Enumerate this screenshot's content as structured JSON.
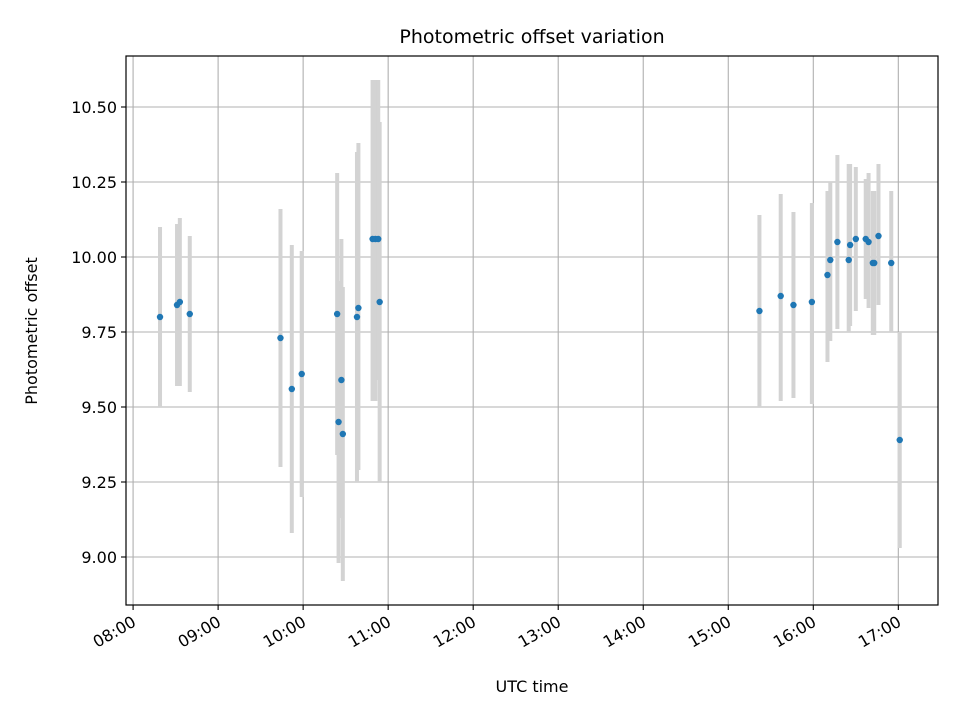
{
  "chart_data": {
    "type": "scatter",
    "title": "Photometric offset variation",
    "xlabel": "UTC time",
    "ylabel": "Photometric offset",
    "x_ticks": [
      "08:00",
      "09:00",
      "10:00",
      "11:00",
      "12:00",
      "13:00",
      "14:00",
      "15:00",
      "16:00",
      "17:00"
    ],
    "y_ticks": [
      "9.00",
      "9.25",
      "9.50",
      "9.75",
      "10.00",
      "10.25",
      "10.50"
    ],
    "xlim": [
      "07:55",
      "17:28"
    ],
    "ylim": [
      8.84,
      10.67
    ],
    "grid": true,
    "legend": "none",
    "colors": {
      "point": "#1f77b4",
      "errorbar": "#d3d3d3",
      "grid": "#b0b0b0"
    },
    "points": [
      {
        "t": "08:19",
        "y": 9.8,
        "lo": 9.5,
        "hi": 10.1
      },
      {
        "t": "08:31",
        "y": 9.84,
        "lo": 9.57,
        "hi": 10.11
      },
      {
        "t": "08:33",
        "y": 9.85,
        "lo": 9.57,
        "hi": 10.13
      },
      {
        "t": "08:40",
        "y": 9.81,
        "lo": 9.55,
        "hi": 10.07
      },
      {
        "t": "09:44",
        "y": 9.73,
        "lo": 9.3,
        "hi": 10.16
      },
      {
        "t": "09:52",
        "y": 9.56,
        "lo": 9.08,
        "hi": 10.04
      },
      {
        "t": "09:59",
        "y": 9.61,
        "lo": 9.2,
        "hi": 10.02
      },
      {
        "t": "10:24",
        "y": 9.81,
        "lo": 9.34,
        "hi": 10.28
      },
      {
        "t": "10:25",
        "y": 9.45,
        "lo": 8.98,
        "hi": 9.92
      },
      {
        "t": "10:27",
        "y": 9.59,
        "lo": 9.13,
        "hi": 10.06
      },
      {
        "t": "10:28",
        "y": 9.41,
        "lo": 8.92,
        "hi": 9.9
      },
      {
        "t": "10:38",
        "y": 9.8,
        "lo": 9.25,
        "hi": 10.35
      },
      {
        "t": "10:39",
        "y": 9.83,
        "lo": 9.29,
        "hi": 10.38
      },
      {
        "t": "10:49",
        "y": 10.06,
        "lo": 9.52,
        "hi": 10.59
      },
      {
        "t": "10:51",
        "y": 10.06,
        "lo": 9.52,
        "hi": 10.59
      },
      {
        "t": "10:53",
        "y": 10.06,
        "lo": 9.59,
        "hi": 10.59
      },
      {
        "t": "10:54",
        "y": 9.85,
        "lo": 9.25,
        "hi": 10.45
      },
      {
        "t": "15:22",
        "y": 9.82,
        "lo": 9.5,
        "hi": 10.14
      },
      {
        "t": "15:37",
        "y": 9.87,
        "lo": 9.52,
        "hi": 10.21
      },
      {
        "t": "15:46",
        "y": 9.84,
        "lo": 9.53,
        "hi": 10.15
      },
      {
        "t": "15:59",
        "y": 9.85,
        "lo": 9.51,
        "hi": 10.18
      },
      {
        "t": "16:10",
        "y": 9.94,
        "lo": 9.65,
        "hi": 10.22
      },
      {
        "t": "16:12",
        "y": 9.99,
        "lo": 9.72,
        "hi": 10.25
      },
      {
        "t": "16:17",
        "y": 10.05,
        "lo": 9.76,
        "hi": 10.34
      },
      {
        "t": "16:25",
        "y": 9.99,
        "lo": 9.75,
        "hi": 10.31
      },
      {
        "t": "16:26",
        "y": 10.04,
        "lo": 9.77,
        "hi": 10.31
      },
      {
        "t": "16:30",
        "y": 10.06,
        "lo": 9.82,
        "hi": 10.3
      },
      {
        "t": "16:37",
        "y": 10.06,
        "lo": 9.86,
        "hi": 10.26
      },
      {
        "t": "16:39",
        "y": 10.05,
        "lo": 9.83,
        "hi": 10.28
      },
      {
        "t": "16:42",
        "y": 9.98,
        "lo": 9.74,
        "hi": 10.22
      },
      {
        "t": "16:43",
        "y": 9.98,
        "lo": 9.74,
        "hi": 10.22
      },
      {
        "t": "16:46",
        "y": 10.07,
        "lo": 9.84,
        "hi": 10.31
      },
      {
        "t": "16:55",
        "y": 9.98,
        "lo": 9.75,
        "hi": 10.22
      },
      {
        "t": "17:01",
        "y": 9.39,
        "lo": 9.03,
        "hi": 9.75
      }
    ]
  }
}
